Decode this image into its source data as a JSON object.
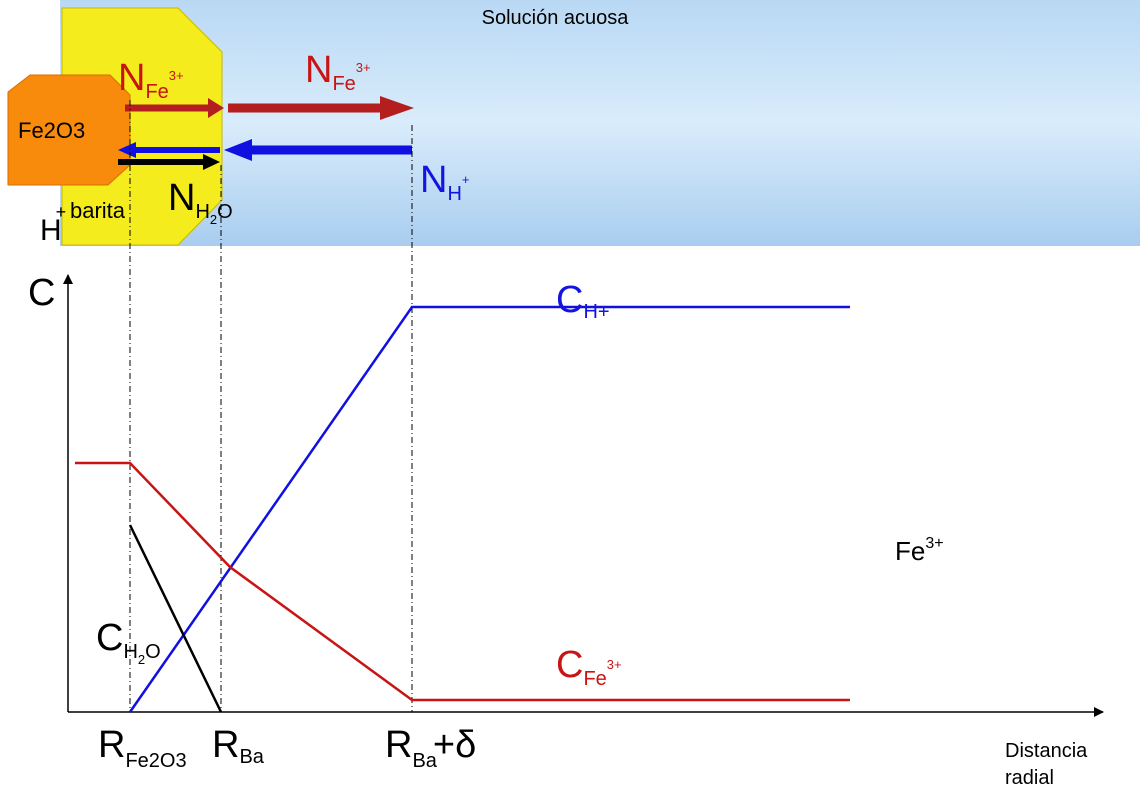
{
  "header": {
    "title": "Solución acuosa"
  },
  "regions": {
    "core": "Fe2O3",
    "shell": "barita",
    "proton": {
      "main": "H",
      "sup": "+"
    }
  },
  "fluxes": {
    "iron_inner": {
      "main": "N",
      "sub": "Fe",
      "sup": "3+"
    },
    "iron_outer": {
      "main": "N",
      "sub": "Fe",
      "sup": "3+"
    },
    "proton": {
      "main": "N",
      "sub": "H",
      "sup": "+"
    },
    "water": {
      "main": "N",
      "sub": "H",
      "subsub": "2",
      "tail": "O"
    }
  },
  "curves": {
    "proton": {
      "main": "C",
      "sub": "H+"
    },
    "water": {
      "main": "C",
      "sub": "H",
      "subsub": "2",
      "tail": "O"
    },
    "iron": {
      "main": "C",
      "sub": "Fe",
      "sup": "3+"
    }
  },
  "axes": {
    "y_label": "C",
    "x_label": [
      "Distancia",
      "radial"
    ],
    "x_marks": [
      {
        "main": "R",
        "sub": "Fe2O3"
      },
      {
        "main": "R",
        "sub": "Ba"
      },
      {
        "main": "R",
        "sub": "Ba",
        "tail": "+δ"
      }
    ]
  },
  "note": {
    "main": "Fe",
    "sup": "3+"
  }
}
